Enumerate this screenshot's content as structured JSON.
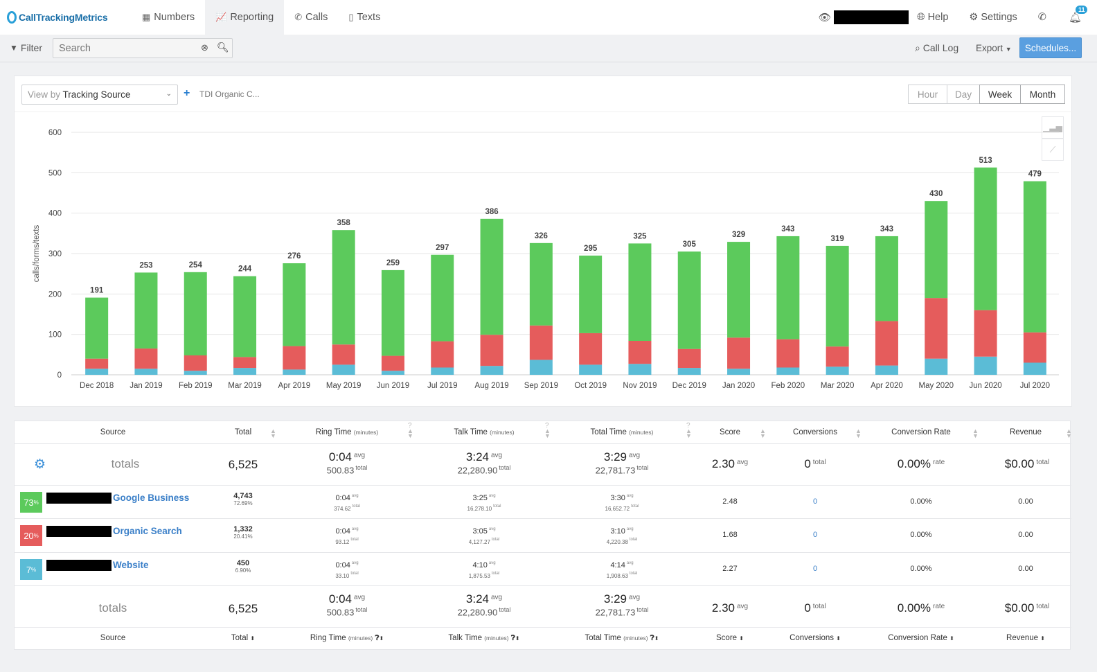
{
  "brand": "CallTrackingMetrics",
  "nav": {
    "items": [
      {
        "label": "Numbers",
        "icon": "grid-icon"
      },
      {
        "label": "Reporting",
        "icon": "chart-icon"
      },
      {
        "label": "Calls",
        "icon": "phone-icon"
      },
      {
        "label": "Texts",
        "icon": "mobile-icon"
      }
    ],
    "help": "Help",
    "settings": "Settings",
    "notifications_count": "11"
  },
  "toolbar": {
    "filter": "Filter",
    "search_placeholder": "Search",
    "call_log": "Call Log",
    "export": "Export",
    "schedules": "Schedules..."
  },
  "chart_controls": {
    "view_by_prefix": "View by",
    "view_by_value": "Tracking Source",
    "filter_tag": "TDI Organic C...",
    "ranges": [
      "Hour",
      "Day",
      "Week",
      "Month"
    ],
    "selected_range": "Month"
  },
  "colors": {
    "green": "#5cca5c",
    "red": "#e55c5c",
    "blue": "#5bbcd6"
  },
  "chart_data": {
    "type": "bar",
    "stacked": true,
    "ylabel": "calls/forms/texts",
    "ylim": [
      0,
      600
    ],
    "yticks": [
      0,
      100,
      200,
      300,
      400,
      500,
      600
    ],
    "grid": true,
    "categories": [
      "Dec 2018",
      "Jan 2019",
      "Feb 2019",
      "Mar 2019",
      "Apr 2019",
      "May 2019",
      "Jun 2019",
      "Jul 2019",
      "Aug 2019",
      "Sep 2019",
      "Oct 2019",
      "Nov 2019",
      "Dec 2019",
      "Jan 2020",
      "Feb 2020",
      "Mar 2020",
      "Apr 2020",
      "May 2020",
      "Jun 2020",
      "Jul 2020"
    ],
    "totals": [
      191,
      253,
      254,
      244,
      276,
      358,
      259,
      297,
      386,
      326,
      295,
      325,
      305,
      329,
      343,
      319,
      343,
      430,
      513,
      479
    ],
    "series": [
      {
        "color": "#5bbcd6",
        "values": [
          15,
          15,
          10,
          17,
          13,
          25,
          10,
          18,
          22,
          37,
          25,
          27,
          17,
          15,
          18,
          20,
          23,
          40,
          45,
          30
        ]
      },
      {
        "color": "#e55c5c",
        "values": [
          25,
          50,
          38,
          27,
          58,
          50,
          37,
          65,
          77,
          85,
          78,
          57,
          47,
          77,
          70,
          50,
          110,
          150,
          115,
          75
        ]
      },
      {
        "color": "#5cca5c",
        "values": [
          151,
          188,
          206,
          200,
          205,
          283,
          212,
          214,
          287,
          204,
          192,
          241,
          241,
          237,
          255,
          249,
          210,
          240,
          353,
          374
        ]
      }
    ]
  },
  "table": {
    "headers": {
      "source": "Source",
      "total": "Total",
      "ring": "Ring Time",
      "talk": "Talk Time",
      "totaltime": "Total Time",
      "minutes": "(minutes)",
      "score": "Score",
      "conversions": "Conversions",
      "rate": "Conversion Rate",
      "revenue": "Revenue"
    },
    "totals_label": "totals",
    "suffix_avg": "avg",
    "suffix_total": "total",
    "suffix_rate": "rate",
    "totals": {
      "total": "6,525",
      "ring_avg": "0:04",
      "ring_total": "500.83",
      "talk_avg": "3:24",
      "talk_total": "22,280.90",
      "time_avg": "3:29",
      "time_total": "22,781.73",
      "score": "2.30",
      "conversions": "0",
      "rate": "0.00%",
      "revenue": "$0.00"
    },
    "rows": [
      {
        "pct": "73",
        "color": "#5cca5c",
        "name": "Google Business",
        "total": "4,743",
        "total_pct": "72.69%",
        "ring_avg": "0:04",
        "ring_total": "374.62",
        "talk_avg": "3:25",
        "talk_total": "16,278.10",
        "time_avg": "3:30",
        "time_total": "16,652.72",
        "score": "2.48",
        "conversions": "0",
        "rate": "0.00%",
        "revenue": "0.00"
      },
      {
        "pct": "20",
        "color": "#e55c5c",
        "name": "Organic Search",
        "total": "1,332",
        "total_pct": "20.41%",
        "ring_avg": "0:04",
        "ring_total": "93.12",
        "talk_avg": "3:05",
        "talk_total": "4,127.27",
        "time_avg": "3:10",
        "time_total": "4,220.38",
        "score": "1.68",
        "conversions": "0",
        "rate": "0.00%",
        "revenue": "0.00"
      },
      {
        "pct": "7",
        "color": "#5bbcd6",
        "name": "Website",
        "total": "450",
        "total_pct": "6.90%",
        "ring_avg": "0:04",
        "ring_total": "33.10",
        "talk_avg": "4:10",
        "talk_total": "1,875.53",
        "time_avg": "4:14",
        "time_total": "1,908.63",
        "score": "2.27",
        "conversions": "0",
        "rate": "0.00%",
        "revenue": "0.00"
      }
    ]
  }
}
